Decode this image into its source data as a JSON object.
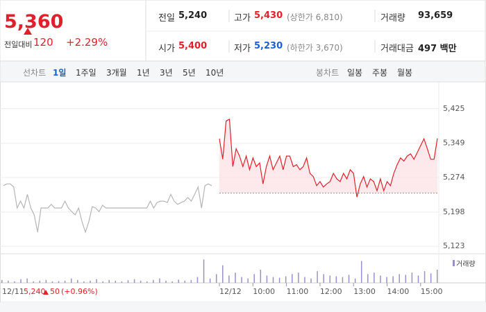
{
  "header": {
    "price": "5,360",
    "change_label": "전일대비",
    "change": "120",
    "change_pct": "+2.29%",
    "up_color": "#e0202a",
    "stats": [
      {
        "label": "전일",
        "value": "5,240",
        "color": "#222222"
      },
      {
        "label": "고가",
        "value": "5,430",
        "note": "(상한가 6,810)",
        "color": "#e0202a"
      },
      {
        "label": "거래량",
        "value": "93,659",
        "color": "#222222"
      },
      {
        "label": "시가",
        "value": "5,400",
        "color": "#e0202a"
      },
      {
        "label": "저가",
        "value": "5,230",
        "note": "(하한가 3,670)",
        "color": "#1b5fd1"
      },
      {
        "label": "거래대금",
        "value": "497 백만",
        "color": "#222222"
      }
    ]
  },
  "tabs": {
    "line_label": "선차트",
    "line_items": [
      "1일",
      "1주일",
      "3개월",
      "1년",
      "3년",
      "5년",
      "10년"
    ],
    "active_index": 0,
    "candle_label": "봉차트",
    "candle_items": [
      "일봉",
      "주봉",
      "월봉"
    ]
  },
  "chart_data": {
    "type": "line",
    "ylim": [
      5108,
      5478
    ],
    "yticks": [
      {
        "value": 5425,
        "label": "5,425"
      },
      {
        "value": 5349,
        "label": "5,349"
      },
      {
        "value": 5274,
        "label": "5,274"
      },
      {
        "value": 5198,
        "label": "5,198"
      },
      {
        "value": 5123,
        "label": "5,123"
      }
    ],
    "grid": true,
    "baseline": 5240,
    "x_labels": [
      "12/12",
      "10:00",
      "11:00",
      "12:00",
      "13:00",
      "14:00",
      "15:00"
    ],
    "series": [
      {
        "color": "#b5b5b5",
        "values": [
          5256,
          5260,
          5260,
          5253,
          5207,
          5222,
          5207,
          5237,
          5207,
          5192,
          5154,
          5207,
          5207,
          5207,
          5215,
          5207,
          5207,
          5207,
          5222,
          5207,
          5199,
          5192,
          5207,
          5177,
          5154,
          5177,
          5210,
          5207,
          5199,
          5213,
          5207,
          5207,
          5207,
          5207,
          5207,
          5207,
          5207,
          5207,
          5207,
          5207,
          5207,
          5207,
          5207,
          5222,
          5207,
          5219,
          5222,
          5222,
          5219,
          5237,
          5222,
          5215,
          5219,
          5222,
          5230,
          5222,
          5237,
          5253,
          5207,
          5256,
          5260,
          5256
        ]
      },
      {
        "color": "#e0202a",
        "fill": "#fde4e6",
        "values": [
          5359,
          5314,
          5398,
          5402,
          5298,
          5337,
          5321,
          5298,
          5321,
          5291,
          5317,
          5298,
          5306,
          5260,
          5298,
          5321,
          5291,
          5306,
          5321,
          5291,
          5321,
          5321,
          5298,
          5302,
          5291,
          5298,
          5317,
          5283,
          5276,
          5256,
          5265,
          5253,
          5260,
          5265,
          5283,
          5271,
          5265,
          5283,
          5271,
          5291,
          5283,
          5231,
          5260,
          5276,
          5253,
          5271,
          5265,
          5245,
          5271,
          5245,
          5265,
          5256,
          5283,
          5302,
          5317,
          5310,
          5321,
          5326,
          5314,
          5329,
          5344,
          5359,
          5337,
          5314,
          5314,
          5360
        ]
      }
    ],
    "volume": {
      "name": "거래량",
      "color": "#9b8fc9",
      "ylim": [
        0,
        180
      ],
      "values": [
        20,
        15,
        10,
        25,
        30,
        10,
        15,
        20,
        10,
        12,
        15,
        30,
        20,
        10,
        15,
        25,
        10,
        20,
        15,
        10,
        18,
        25,
        15,
        10,
        20,
        30,
        15,
        10,
        22,
        15,
        20,
        40,
        160,
        30,
        60,
        120,
        50,
        70,
        40,
        30,
        60,
        90,
        50,
        40,
        35,
        45,
        60,
        70,
        40,
        30,
        80,
        60,
        50,
        45,
        40,
        55,
        30,
        150,
        60,
        70,
        50,
        40,
        45,
        60,
        55,
        70,
        50,
        80,
        65,
        90
      ]
    },
    "prev_day": {
      "date": "12/11",
      "close": "5,240",
      "change": "50",
      "change_pct": "(+0.96%)"
    }
  }
}
